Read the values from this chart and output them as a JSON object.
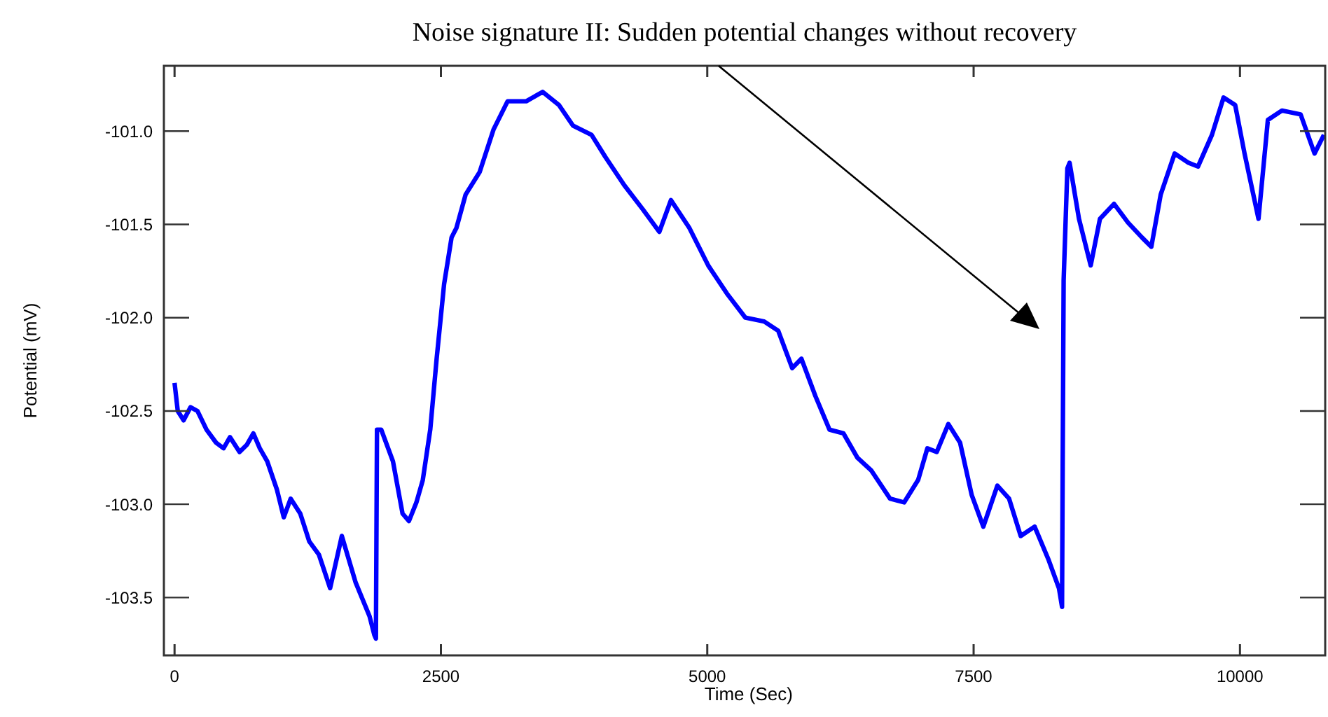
{
  "chart_data": {
    "type": "line",
    "title": "Noise signature II: Sudden potential changes without recovery",
    "xlabel": "Time (Sec)",
    "ylabel": "Potential (mV)",
    "xlim": [
      -100,
      10800
    ],
    "ylim": [
      -103.81,
      -100.65
    ],
    "xticks": [
      0,
      2500,
      5000,
      7500,
      10000
    ],
    "yticks": [
      {
        "value": -101.0,
        "label": "-101.0"
      },
      {
        "value": -101.5,
        "label": "-101.5"
      },
      {
        "value": -102.0,
        "label": "-102.0"
      },
      {
        "value": -102.5,
        "label": "-102.5"
      },
      {
        "value": -103.0,
        "label": "-103.0"
      },
      {
        "value": -103.5,
        "label": "-103.5"
      }
    ],
    "grid": false,
    "marker": "none",
    "line_style": "solid",
    "series": [
      {
        "color": "#0000ff",
        "x": [
          0,
          30,
          85,
          150,
          215,
          300,
          390,
          460,
          520,
          610,
          680,
          740,
          800,
          870,
          960,
          1025,
          1090,
          1180,
          1265,
          1355,
          1460,
          1570,
          1700,
          1830,
          1875,
          1890,
          1900,
          1940,
          2050,
          2140,
          2200,
          2270,
          2330,
          2400,
          2460,
          2530,
          2600,
          2645,
          2732,
          2863,
          2995,
          3126,
          3301,
          3455,
          3608,
          3739,
          3914,
          4045,
          4221,
          4396,
          4550,
          4659,
          4833,
          5009,
          5184,
          5358,
          5534,
          5666,
          5797,
          5884,
          6015,
          6147,
          6278,
          6409,
          6541,
          6716,
          6848,
          6979,
          7066,
          7154,
          7263,
          7373,
          7482,
          7591,
          7723,
          7833,
          7942,
          8073,
          8205,
          8301,
          8330,
          8336,
          8345,
          8380,
          8401,
          8489,
          8599,
          8686,
          8818,
          8949,
          9080,
          9168,
          9256,
          9387,
          9518,
          9606,
          9737,
          9846,
          9955,
          10043,
          10174,
          10262,
          10394,
          10569,
          10700,
          10788
        ],
        "values": [
          -102.35,
          -102.5,
          -102.55,
          -102.48,
          -102.5,
          -102.6,
          -102.67,
          -102.7,
          -102.64,
          -102.72,
          -102.68,
          -102.62,
          -102.7,
          -102.77,
          -102.92,
          -103.07,
          -102.97,
          -103.05,
          -103.2,
          -103.27,
          -103.45,
          -103.17,
          -103.42,
          -103.6,
          -103.7,
          -103.72,
          -102.6,
          -102.6,
          -102.77,
          -103.05,
          -103.09,
          -102.99,
          -102.87,
          -102.6,
          -102.22,
          -101.82,
          -101.57,
          -101.52,
          -101.34,
          -101.22,
          -100.99,
          -100.84,
          -100.84,
          -100.79,
          -100.86,
          -100.97,
          -101.02,
          -101.14,
          -101.29,
          -101.42,
          -101.54,
          -101.37,
          -101.52,
          -101.72,
          -101.87,
          -102.0,
          -102.02,
          -102.07,
          -102.27,
          -102.22,
          -102.42,
          -102.6,
          -102.62,
          -102.75,
          -102.82,
          -102.97,
          -102.99,
          -102.87,
          -102.7,
          -102.72,
          -102.57,
          -102.67,
          -102.95,
          -103.12,
          -102.9,
          -102.97,
          -103.17,
          -103.12,
          -103.3,
          -103.45,
          -103.55,
          -102.8,
          -101.8,
          -101.2,
          -101.17,
          -101.47,
          -101.72,
          -101.47,
          -101.39,
          -101.49,
          -101.57,
          -101.62,
          -101.34,
          -101.12,
          -101.17,
          -101.19,
          -101.02,
          -100.82,
          -100.86,
          -101.12,
          -101.47,
          -100.94,
          -100.89,
          -100.91,
          -101.12,
          -101.02
        ]
      }
    ]
  }
}
